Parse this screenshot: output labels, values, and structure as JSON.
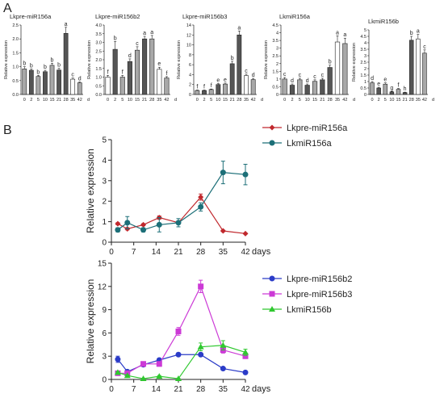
{
  "panel_labels": {
    "a": "A",
    "b": "B"
  },
  "chart_data": [
    {
      "type": "bar",
      "title": "Lkpre-miR156a",
      "ylabel": "Relative expression",
      "xunit": "d",
      "categories": [
        "0",
        "2",
        "5",
        "10",
        "15",
        "21",
        "28",
        "35",
        "42"
      ],
      "values": [
        0.92,
        0.87,
        0.65,
        0.82,
        1.05,
        0.88,
        2.2,
        0.55,
        0.42
      ],
      "errors": [
        0.08,
        0.05,
        0.04,
        0.05,
        0.07,
        0.06,
        0.22,
        0.04,
        0.03
      ],
      "letters": [
        "b",
        "b",
        "b",
        "b",
        "b",
        "b",
        "a",
        "c",
        "d"
      ],
      "yticks": [
        "0.0",
        "0.5",
        "1.0",
        "1.5",
        "2.0",
        "2.5"
      ],
      "ylim": [
        0,
        2.5
      ],
      "bar_colors": [
        "#a8a8a8",
        "#555555",
        "#a8a8a8",
        "#555555",
        "#a8a8a8",
        "#555555",
        "#555555",
        "#ffffff",
        "#a8a8a8"
      ]
    },
    {
      "type": "bar",
      "title": "Lkpre-miR156b2",
      "ylabel": "Relative expression",
      "xunit": "d",
      "categories": [
        "0",
        "2",
        "5",
        "10",
        "15",
        "21",
        "28",
        "35",
        "42"
      ],
      "values": [
        1.0,
        2.6,
        1.0,
        1.9,
        2.55,
        3.2,
        3.2,
        1.45,
        0.95
      ],
      "errors": [
        0.1,
        0.45,
        0.1,
        0.15,
        0.2,
        0.15,
        0.2,
        0.12,
        0.08
      ],
      "letters": [
        "f",
        "b",
        "f",
        "d",
        "c",
        "a",
        "a",
        "e",
        "f"
      ],
      "yticks": [
        "0.0",
        "0.5",
        "1.0",
        "1.5",
        "2.0",
        "2.5",
        "3.0",
        "3.5",
        "4.0"
      ],
      "ylim": [
        0,
        4.0
      ],
      "bar_colors": [
        "#ffffff",
        "#555555",
        "#a8a8a8",
        "#555555",
        "#a8a8a8",
        "#555555",
        "#a8a8a8",
        "#ffffff",
        "#a8a8a8"
      ]
    },
    {
      "type": "bar",
      "title": "Lkpre-miR156b3",
      "ylabel": "Relative expression",
      "xunit": "d",
      "categories": [
        "0",
        "2",
        "5",
        "10",
        "15",
        "21",
        "28",
        "35",
        "42"
      ],
      "values": [
        0.8,
        0.8,
        1.0,
        2.0,
        2.1,
        6.2,
        12.0,
        3.8,
        3.0
      ],
      "errors": [
        0.1,
        0.1,
        0.1,
        0.2,
        0.2,
        0.5,
        0.8,
        0.3,
        0.25
      ],
      "letters": [
        "f",
        "f",
        "f",
        "e",
        "e",
        "b",
        "a",
        "c",
        "d"
      ],
      "yticks": [
        "0",
        "2",
        "4",
        "6",
        "8",
        "10",
        "12",
        "14"
      ],
      "ylim": [
        0,
        14
      ],
      "bar_colors": [
        "#a8a8a8",
        "#555555",
        "#a8a8a8",
        "#555555",
        "#a8a8a8",
        "#555555",
        "#555555",
        "#ffffff",
        "#a8a8a8"
      ]
    },
    {
      "type": "bar",
      "title": "LkmiR156a",
      "ylabel": "Relative expression",
      "xunit": "d",
      "categories": [
        "0",
        "2",
        "5",
        "10",
        "15",
        "21",
        "28",
        "35",
        "42"
      ],
      "values": [
        1.0,
        0.6,
        0.95,
        0.6,
        0.85,
        0.95,
        1.75,
        3.4,
        3.3
      ],
      "errors": [
        0.1,
        0.08,
        0.1,
        0.08,
        0.1,
        0.1,
        0.15,
        0.4,
        0.35
      ],
      "letters": [
        "c",
        "d",
        "c",
        "d",
        "c",
        "c",
        "b",
        "a",
        "a"
      ],
      "yticks": [
        "0",
        "0.5",
        "1",
        "1.5",
        "2",
        "2.5",
        "3",
        "3.5",
        "4",
        "4.5"
      ],
      "ylim": [
        0,
        4.5
      ],
      "bar_colors": [
        "#a8a8a8",
        "#555555",
        "#a8a8a8",
        "#555555",
        "#a8a8a8",
        "#555555",
        "#555555",
        "#ffffff",
        "#a8a8a8"
      ]
    },
    {
      "type": "bar",
      "title": "LkmiR156b",
      "ylabel": "Relative expression",
      "xunit": "d",
      "categories": [
        "0",
        "2",
        "5",
        "10",
        "15",
        "21",
        "28",
        "35",
        "42"
      ],
      "values": [
        0.9,
        0.5,
        0.8,
        0.2,
        0.4,
        0.15,
        4.2,
        4.3,
        3.2
      ],
      "errors": [
        0.1,
        0.06,
        0.1,
        0.04,
        0.06,
        0.03,
        0.3,
        0.35,
        0.25
      ],
      "letters": [
        "d",
        "e",
        "e",
        "g",
        "f",
        "h",
        "b",
        "a",
        "c"
      ],
      "yticks": [
        "0",
        "0.5",
        "1",
        "1.5",
        "2",
        "2.5",
        "3",
        "3.5",
        "4",
        "4.5",
        "5"
      ],
      "ylim": [
        0,
        5
      ],
      "bar_colors": [
        "#a8a8a8",
        "#555555",
        "#a8a8a8",
        "#555555",
        "#a8a8a8",
        "#555555",
        "#555555",
        "#ffffff",
        "#a8a8a8"
      ]
    },
    {
      "type": "line",
      "ylabel": "Relative expression",
      "xunit": "days",
      "xticks": [
        0,
        7,
        14,
        21,
        28,
        35,
        42
      ],
      "yticks": [
        0,
        1,
        2,
        3,
        4,
        5
      ],
      "xlim": [
        0,
        42
      ],
      "ylim": [
        0,
        5
      ],
      "legend": "right",
      "series": [
        {
          "name": "Lkpre-miR156a",
          "color": "#c0282d",
          "marker": "diamond",
          "x": [
            2,
            5,
            10,
            15,
            21,
            28,
            35,
            42
          ],
          "y": [
            0.9,
            0.65,
            0.85,
            1.2,
            0.95,
            2.2,
            0.55,
            0.42
          ],
          "err": [
            0.05,
            0.05,
            0.05,
            0.08,
            0.06,
            0.15,
            0.04,
            0.03
          ]
        },
        {
          "name": "LkmiR156a",
          "color": "#1c6f78",
          "marker": "circle",
          "x": [
            2,
            5,
            10,
            15,
            21,
            28,
            35,
            42
          ],
          "y": [
            0.6,
            0.95,
            0.6,
            0.85,
            0.95,
            1.72,
            3.4,
            3.3
          ],
          "err": [
            0.1,
            0.3,
            0.1,
            0.35,
            0.2,
            0.2,
            0.55,
            0.5
          ]
        }
      ]
    },
    {
      "type": "line",
      "ylabel": "Relative expression",
      "xunit": "days",
      "xticks": [
        0,
        7,
        14,
        21,
        28,
        35,
        42
      ],
      "yticks": [
        0,
        3,
        6,
        9,
        12,
        15
      ],
      "xlim": [
        0,
        42
      ],
      "ylim": [
        0,
        15
      ],
      "legend": "right",
      "series": [
        {
          "name": "Lkpre-miR156b2",
          "color": "#2b3cc8",
          "marker": "circle",
          "x": [
            2,
            5,
            10,
            15,
            21,
            28,
            35,
            42
          ],
          "y": [
            2.6,
            1.0,
            1.9,
            2.5,
            3.2,
            3.2,
            1.4,
            0.9
          ],
          "err": [
            0.4,
            0.1,
            0.2,
            0.2,
            0.2,
            0.2,
            0.1,
            0.1
          ]
        },
        {
          "name": "Lkpre-miR156b3",
          "color": "#cc3ad6",
          "marker": "square",
          "x": [
            2,
            5,
            10,
            15,
            21,
            28,
            35,
            42
          ],
          "y": [
            0.8,
            0.8,
            2.0,
            2.0,
            6.2,
            12.0,
            3.8,
            3.0
          ],
          "err": [
            0.1,
            0.1,
            0.3,
            0.3,
            0.5,
            0.8,
            0.4,
            0.3
          ]
        },
        {
          "name": "LkmiR156b",
          "color": "#2fc82f",
          "marker": "triangle",
          "x": [
            2,
            5,
            10,
            15,
            21,
            28,
            35,
            42
          ],
          "y": [
            0.9,
            0.5,
            0.1,
            0.4,
            0.1,
            4.2,
            4.4,
            3.5
          ],
          "err": [
            0.1,
            0.1,
            0.05,
            0.1,
            0.05,
            0.5,
            0.6,
            0.4
          ]
        }
      ]
    }
  ]
}
